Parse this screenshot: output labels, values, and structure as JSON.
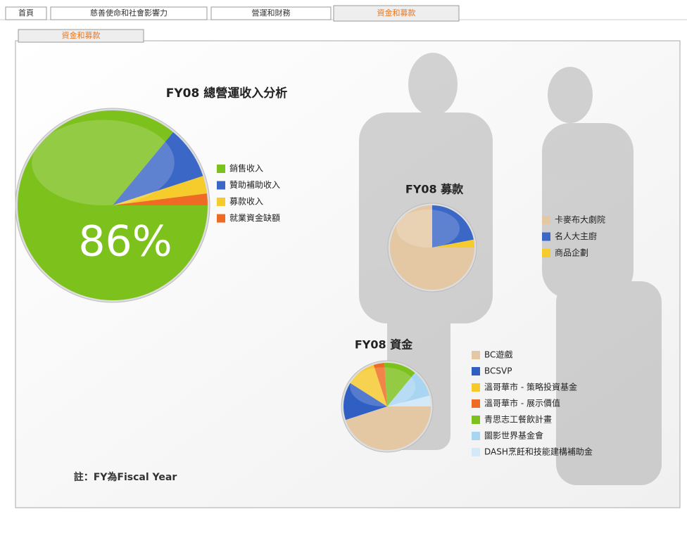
{
  "tabs": [
    "首頁",
    "慈善使命和社會影響力",
    "營運和財務",
    "資金和募款"
  ],
  "subtab": "資金和募款",
  "note": "註：FY為Fiscal Year",
  "chart_data": [
    {
      "type": "pie",
      "title": "FY08 總營運收入分析",
      "categories": [
        "銷售收入",
        "贊助補助收入",
        "募款收入",
        "就業資金缺額"
      ],
      "values": [
        86,
        9,
        3,
        2
      ],
      "value_labels": [
        "86%",
        null,
        null,
        null
      ],
      "colors": [
        "#7cc11c",
        "#3b67c6",
        "#f6cb2c",
        "#ef6a22"
      ]
    },
    {
      "type": "pie",
      "title": "FY08 募款",
      "categories": [
        "卡麥布大劇院",
        "名人大主廚",
        "商品企劃"
      ],
      "values": [
        75,
        22,
        3
      ],
      "colors": [
        "#e4c7a3",
        "#3b67c6",
        "#f6cb2c"
      ]
    },
    {
      "type": "pie",
      "title": "FY08 資金",
      "categories": [
        "BC遊戲",
        "BCSVP",
        "溫哥華市 - 策略投資基金",
        "溫哥華市 - 展示價值",
        "青思志工餐飲計畫",
        "圖影世界基金會",
        "DASH烹飪和技能建構補助金"
      ],
      "values": [
        45,
        14,
        11,
        4,
        12,
        10,
        4
      ],
      "colors": [
        "#e4c7a3",
        "#2f5fc2",
        "#f6c82a",
        "#ef6a22",
        "#7cc11c",
        "#a8d5f1",
        "#d3e9f8"
      ]
    }
  ]
}
